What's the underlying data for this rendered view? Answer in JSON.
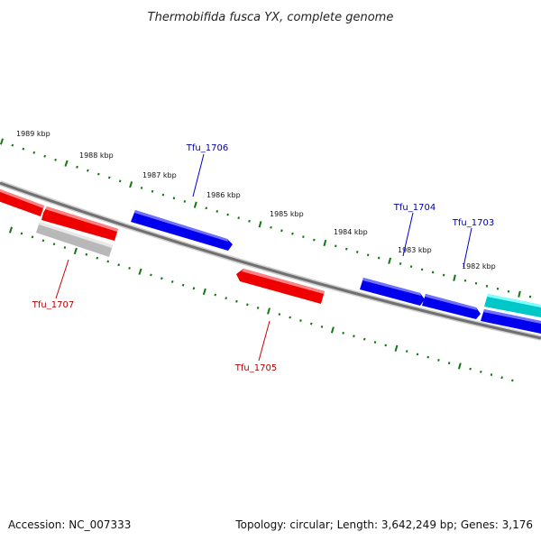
{
  "title": "Thermobifida fusca YX, complete genome",
  "footer": {
    "accession": "Accession: NC_007333",
    "summary": "Topology: circular; Length: 3,642,249 bp; Genes: 3,176"
  },
  "colors": {
    "forward_gene": "#0000ee",
    "reverse_gene": "#ee0000",
    "other_gene_cyan": "#00c8c8",
    "pseudo_gene": "#bbbbbb",
    "backbone": "#777777",
    "tick": "#117711",
    "label_forward": "#0000aa",
    "label_reverse": "#bb0000"
  },
  "kbp_labels": [
    "1989 kbp",
    "1988 kbp",
    "1987 kbp",
    "1986 kbp",
    "1985 kbp",
    "1984 kbp",
    "1983 kbp",
    "1982 kbp"
  ],
  "gene_labels": {
    "tfu1706": "Tfu_1706",
    "tfu1704": "Tfu_1704",
    "tfu1703": "Tfu_1703",
    "tfu1707": "Tfu_1707",
    "tfu1705": "Tfu_1705"
  }
}
